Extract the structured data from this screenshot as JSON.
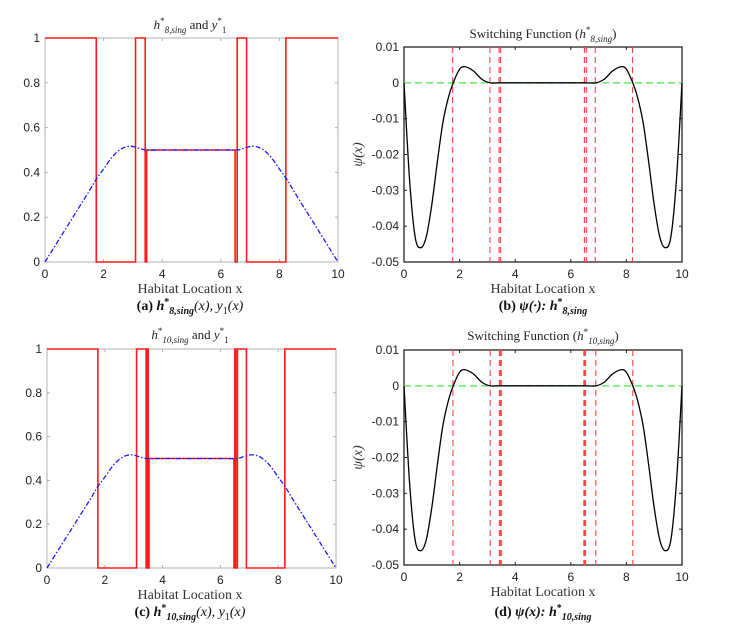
{
  "chart_data": [
    {
      "id": "a",
      "type": "line",
      "title": {
        "h_sub": "8,sing",
        "and": "and"
      },
      "xlabel": "Habitat Location x",
      "caption": {
        "letter": "(a)",
        "h_sub": "8,sing",
        "rest": "(x), y",
        "y_sub": "1",
        "tail": "(x)"
      },
      "xlim": [
        0,
        10
      ],
      "ylim": [
        0,
        1
      ],
      "xticks": [
        "0",
        "2",
        "4",
        "6",
        "8",
        "10"
      ],
      "yticks": [
        "0",
        "0.2",
        "0.4",
        "0.6",
        "0.8",
        "1"
      ],
      "grid": false,
      "series": [
        {
          "color": "#ff1a1a",
          "style": "solid",
          "kind": "step",
          "x": [
            0,
            1.75,
            1.75,
            3.09,
            3.09,
            3.42,
            3.42,
            3.47,
            3.47,
            6.49,
            6.49,
            6.56,
            6.56,
            6.88,
            6.88,
            8.22,
            8.22,
            10
          ],
          "y": [
            1,
            1,
            0,
            0,
            1,
            1,
            0,
            0,
            0.5,
            0.5,
            0,
            0,
            1,
            1,
            0,
            0,
            1,
            1
          ]
        },
        {
          "color": "#1a1aff",
          "style": "dashdot",
          "kind": "smooth",
          "x": [
            0,
            0.5,
            1.0,
            1.5,
            1.75,
            2.0,
            2.3,
            2.6,
            2.9,
            3.2,
            3.45,
            4,
            5,
            6,
            6.55,
            6.8,
            7.1,
            7.4,
            7.7,
            8.0,
            8.25,
            8.5,
            9.0,
            9.5,
            10
          ],
          "y": [
            0,
            0.105,
            0.21,
            0.315,
            0.37,
            0.415,
            0.47,
            0.505,
            0.517,
            0.508,
            0.5,
            0.5,
            0.5,
            0.5,
            0.5,
            0.508,
            0.517,
            0.505,
            0.47,
            0.415,
            0.37,
            0.315,
            0.21,
            0.105,
            0
          ]
        }
      ]
    },
    {
      "id": "b",
      "type": "line",
      "title": {
        "prefix": "Switching Function (",
        "h_sub": "8,sing",
        "suffix": ")"
      },
      "xlabel": "Habitat Location x",
      "ylabel": "ψ(x)",
      "caption": {
        "letter": "(b)",
        "psi": "ψ(·):",
        "h_sub": "8,sing"
      },
      "xlim": [
        0,
        10
      ],
      "ylim": [
        -0.05,
        0.01
      ],
      "xticks": [
        "0",
        "2",
        "4",
        "6",
        "8",
        "10"
      ],
      "yticks": [
        "-0.05",
        "-0.04",
        "-0.03",
        "-0.02",
        "-0.01",
        "0",
        "0.01"
      ],
      "grid": false,
      "switch_lines": [
        1.75,
        3.09,
        3.42,
        3.47,
        6.49,
        6.56,
        6.88,
        8.22
      ],
      "zero_line_color": "#66ee66",
      "switch_line_color": "#ff4444",
      "series": [
        {
          "color": "#000000",
          "style": "solid",
          "kind": "smooth",
          "x": [
            0,
            0.2,
            0.4,
            0.6,
            0.8,
            1.0,
            1.2,
            1.4,
            1.6,
            1.77,
            2.0,
            2.2,
            2.5,
            2.8,
            3.1,
            3.5,
            5,
            6.5,
            6.9,
            7.2,
            7.5,
            7.8,
            8.0,
            8.23,
            8.4,
            8.6,
            8.8,
            9.0,
            9.2,
            9.4,
            9.6,
            9.8,
            10
          ],
          "y": [
            0,
            -0.027,
            -0.043,
            -0.046,
            -0.043,
            -0.034,
            -0.022,
            -0.011,
            -0.004,
            0,
            0.0038,
            0.0045,
            0.0033,
            0.001,
            0,
            0,
            0,
            0,
            0,
            0.001,
            0.0033,
            0.0045,
            0.0038,
            0,
            -0.004,
            -0.011,
            -0.022,
            -0.034,
            -0.043,
            -0.046,
            -0.043,
            -0.027,
            0
          ]
        }
      ]
    },
    {
      "id": "c",
      "type": "line",
      "title": {
        "h_sub": "10,sing",
        "and": "and"
      },
      "xlabel": "Habitat Location x",
      "caption": {
        "letter": "(c)",
        "h_sub": "10,sing",
        "rest": "(x), y",
        "y_sub": "1",
        "tail": "(x)"
      },
      "xlim": [
        0,
        10
      ],
      "ylim": [
        0,
        1
      ],
      "xticks": [
        "0",
        "2",
        "4",
        "6",
        "8",
        "10"
      ],
      "yticks": [
        "0",
        "0.2",
        "0.4",
        "0.6",
        "0.8",
        "1"
      ],
      "grid": false,
      "series": [
        {
          "color": "#ff1a1a",
          "style": "solid",
          "kind": "step",
          "x": [
            0,
            1.76,
            1.76,
            3.1,
            3.1,
            3.43,
            3.43,
            3.47,
            3.47,
            3.5,
            3.5,
            3.53,
            3.53,
            6.47,
            6.47,
            6.5,
            6.5,
            6.53,
            6.53,
            6.59,
            6.59,
            6.9,
            6.9,
            8.23,
            8.23,
            10
          ],
          "y": [
            1,
            1,
            0,
            0,
            1,
            1,
            0,
            0,
            1,
            1,
            0,
            0,
            0.5,
            0.5,
            0,
            0,
            1,
            1,
            0,
            0,
            1,
            1,
            0,
            0,
            1,
            1
          ]
        },
        {
          "color": "#1a1aff",
          "style": "dashdot",
          "kind": "smooth",
          "x": [
            0,
            0.5,
            1.0,
            1.5,
            1.75,
            2.0,
            2.3,
            2.6,
            2.9,
            3.2,
            3.45,
            4,
            5,
            6,
            6.55,
            6.8,
            7.1,
            7.4,
            7.7,
            8.0,
            8.25,
            8.5,
            9.0,
            9.5,
            10
          ],
          "y": [
            0,
            0.105,
            0.21,
            0.315,
            0.37,
            0.415,
            0.47,
            0.505,
            0.517,
            0.508,
            0.5,
            0.5,
            0.5,
            0.5,
            0.5,
            0.508,
            0.517,
            0.505,
            0.47,
            0.415,
            0.37,
            0.315,
            0.21,
            0.105,
            0
          ]
        }
      ]
    },
    {
      "id": "d",
      "type": "line",
      "title": {
        "prefix": "Switching Function (",
        "h_sub": "10,sing",
        "suffix": ")"
      },
      "xlabel": "Habitat Location x",
      "ylabel": "ψ(x)",
      "caption": {
        "letter": "(d)",
        "psi": "ψ(x):",
        "h_sub": "10,sing"
      },
      "xlim": [
        0,
        10
      ],
      "ylim": [
        -0.05,
        0.01
      ],
      "xticks": [
        "0",
        "2",
        "4",
        "6",
        "8",
        "10"
      ],
      "yticks": [
        "-0.05",
        "-0.04",
        "-0.03",
        "-0.02",
        "-0.01",
        "0",
        "0.01"
      ],
      "grid": false,
      "switch_lines": [
        1.76,
        3.1,
        3.43,
        3.47,
        3.5,
        6.47,
        6.5,
        6.53,
        6.9,
        8.23
      ],
      "zero_line_color": "#66ee66",
      "switch_line_color": "#ff4444",
      "series": [
        {
          "color": "#000000",
          "style": "solid",
          "kind": "smooth",
          "x": [
            0,
            0.2,
            0.4,
            0.6,
            0.8,
            1.0,
            1.2,
            1.4,
            1.6,
            1.77,
            2.0,
            2.2,
            2.5,
            2.8,
            3.1,
            3.5,
            5,
            6.5,
            6.9,
            7.2,
            7.5,
            7.8,
            8.0,
            8.23,
            8.4,
            8.6,
            8.8,
            9.0,
            9.2,
            9.4,
            9.6,
            9.8,
            10
          ],
          "y": [
            0,
            -0.027,
            -0.043,
            -0.046,
            -0.043,
            -0.034,
            -0.022,
            -0.011,
            -0.004,
            0,
            0.0038,
            0.0045,
            0.0033,
            0.001,
            0,
            0,
            0,
            0,
            0,
            0.001,
            0.0033,
            0.0045,
            0.0038,
            0,
            -0.004,
            -0.011,
            -0.022,
            -0.034,
            -0.043,
            -0.046,
            -0.043,
            -0.027,
            0
          ]
        }
      ]
    }
  ]
}
